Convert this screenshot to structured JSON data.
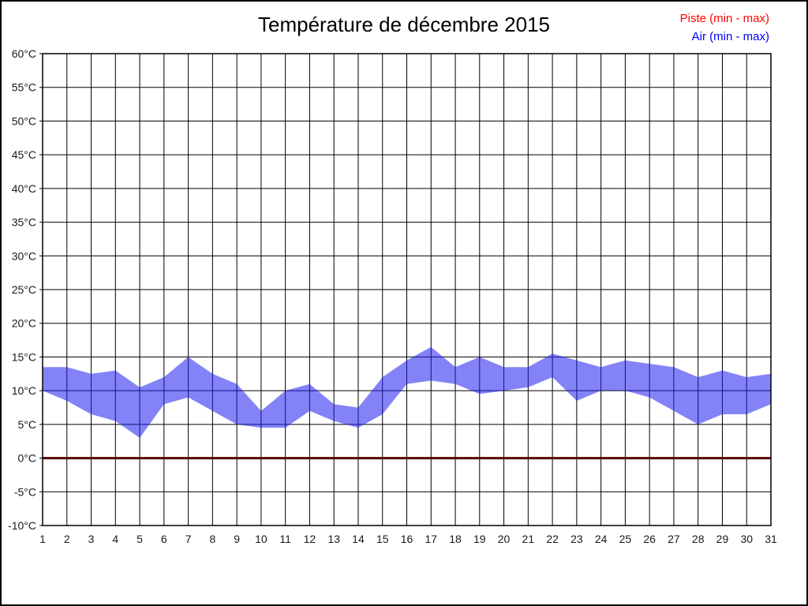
{
  "page": {
    "background": "#ffffff",
    "border_color": "#000000"
  },
  "header": {
    "title": "Température de décembre 2015",
    "legend": [
      {
        "label": "Piste (min - max)",
        "color": "#ff0000"
      },
      {
        "label": "Air (min - max)",
        "color": "#0000ff"
      }
    ]
  },
  "chart_data": {
    "type": "area",
    "subtype": "min-max-range-band",
    "title": "Température de décembre 2015",
    "xlabel": "",
    "ylabel": "",
    "unit": "°C",
    "grid": true,
    "legend_position": "top-right",
    "ylim": [
      -10,
      60
    ],
    "y_ticks": [
      60,
      55,
      50,
      45,
      40,
      35,
      30,
      25,
      20,
      15,
      10,
      5,
      0,
      -5,
      -10
    ],
    "y_tick_labels": [
      "60°C",
      "55°C",
      "50°C",
      "45°C",
      "40°C",
      "35°C",
      "30°C",
      "25°C",
      "20°C",
      "15°C",
      "10°C",
      "5°C",
      "0°C",
      "-5°C",
      "-10°C"
    ],
    "x": [
      1,
      2,
      3,
      4,
      5,
      6,
      7,
      8,
      9,
      10,
      11,
      12,
      13,
      14,
      15,
      16,
      17,
      18,
      19,
      20,
      21,
      22,
      23,
      24,
      25,
      26,
      27,
      28,
      29,
      30,
      31
    ],
    "x_tick_labels": [
      "1",
      "2",
      "3",
      "4",
      "5",
      "6",
      "7",
      "8",
      "9",
      "10",
      "11",
      "12",
      "13",
      "14",
      "15",
      "16",
      "17",
      "18",
      "19",
      "20",
      "21",
      "22",
      "23",
      "24",
      "25",
      "26",
      "27",
      "28",
      "29",
      "30",
      "31"
    ],
    "zero_line": {
      "value": 0,
      "color": "#5c0000",
      "width": 3
    },
    "series": [
      {
        "name": "Piste (min - max)",
        "legend_color": "#ff0000",
        "line_color": "#5c0000",
        "min": [
          0,
          0,
          0,
          0,
          0,
          0,
          0,
          0,
          0,
          0,
          0,
          0,
          0,
          0,
          0,
          0,
          0,
          0,
          0,
          0,
          0,
          0,
          0,
          0,
          0,
          0,
          0,
          0,
          0,
          0,
          0
        ],
        "max": [
          0,
          0,
          0,
          0,
          0,
          0,
          0,
          0,
          0,
          0,
          0,
          0,
          0,
          0,
          0,
          0,
          0,
          0,
          0,
          0,
          0,
          0,
          0,
          0,
          0,
          0,
          0,
          0,
          0,
          0,
          0
        ]
      },
      {
        "name": "Air (min - max)",
        "legend_color": "#0000ff",
        "band_fill": "rgba(30,30,240,0.55)",
        "min": [
          10,
          8.5,
          6.5,
          5.5,
          3,
          8,
          9,
          7,
          5,
          4.5,
          4.5,
          7,
          5.5,
          4.5,
          6.5,
          11,
          11.5,
          11,
          9.5,
          10,
          10.5,
          12,
          8.5,
          10,
          10,
          9,
          7,
          5,
          6.5,
          6.5,
          8
        ],
        "max": [
          13.5,
          13.5,
          12.5,
          13,
          10.5,
          12,
          15,
          12.5,
          11,
          7,
          10,
          11,
          8,
          7.5,
          12,
          14.5,
          16.5,
          13.5,
          15,
          13.5,
          13.5,
          15.5,
          14.5,
          13.5,
          14.5,
          14,
          13.5,
          12,
          13,
          12,
          12.5
        ]
      }
    ]
  }
}
